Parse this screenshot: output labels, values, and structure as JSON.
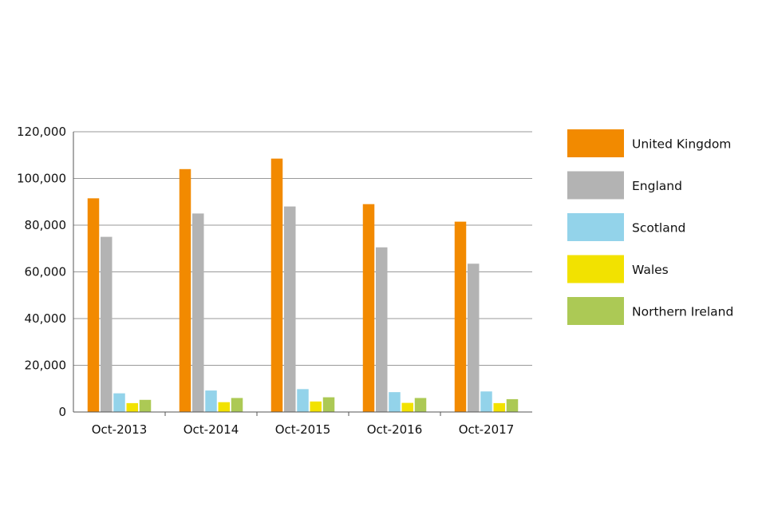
{
  "chart_data": {
    "type": "bar",
    "categories": [
      "Oct-2013",
      "Oct-2014",
      "Oct-2015",
      "Oct-2016",
      "Oct-2017"
    ],
    "series": [
      {
        "name": "United Kingdom",
        "color": "#f28a00",
        "values": [
          91500,
          104000,
          108500,
          89000,
          81500
        ]
      },
      {
        "name": "England",
        "color": "#b3b3b3",
        "values": [
          75000,
          85000,
          88000,
          70500,
          63500
        ]
      },
      {
        "name": "Scotland",
        "color": "#93d3ea",
        "values": [
          8000,
          9200,
          9800,
          8500,
          8800
        ]
      },
      {
        "name": "Wales",
        "color": "#f2e200",
        "values": [
          3800,
          4200,
          4500,
          3900,
          3800
        ]
      },
      {
        "name": "Northern Ireland",
        "color": "#acc955",
        "values": [
          5200,
          6000,
          6300,
          6000,
          5500
        ]
      }
    ],
    "y_ticks": [
      "0",
      "20,000",
      "40,000",
      "60,000",
      "80,000",
      "100,000",
      "120,000"
    ],
    "ylim": [
      0,
      120000
    ],
    "title": "",
    "xlabel": "",
    "ylabel": "",
    "grid": true,
    "legend_position": "right"
  }
}
